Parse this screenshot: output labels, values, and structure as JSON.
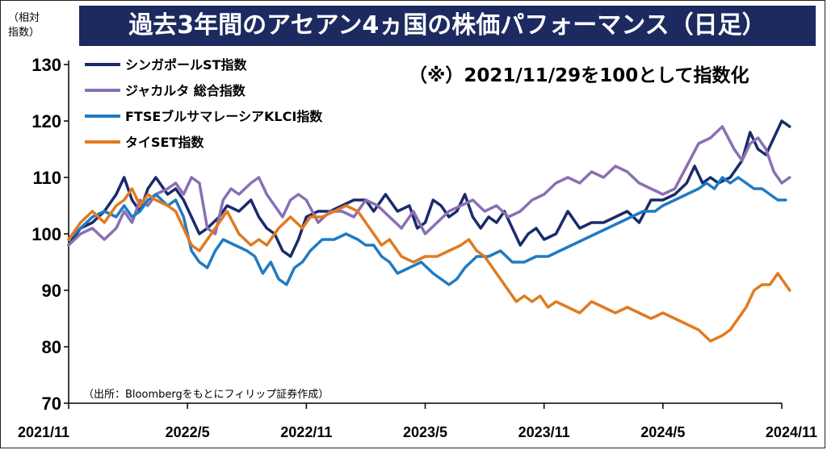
{
  "chart_data": {
    "type": "line",
    "title": "過去3年間のアセアン4ヵ国の株価パフォーマンス（日足）",
    "note": "（※）2021/11/29を100として指数化",
    "ylabel": "（相対指数）",
    "source": "（出所：Bloombergをもとにフィリップ証券作成）",
    "ylim": [
      70,
      130
    ],
    "yticks": [
      70,
      80,
      90,
      100,
      110,
      120,
      130
    ],
    "xlim": [
      0,
      36
    ],
    "xticks": [
      {
        "x": 0,
        "label": "2021/11"
      },
      {
        "x": 6,
        "label": "2022/5"
      },
      {
        "x": 12,
        "label": "2022/11"
      },
      {
        "x": 18,
        "label": "2023/5"
      },
      {
        "x": 24,
        "label": "2023/11"
      },
      {
        "x": 30,
        "label": "2024/5"
      },
      {
        "x": 36,
        "label": "2024/11"
      }
    ],
    "legend_position": "top-left",
    "series": [
      {
        "name": "シンガポールST指数",
        "color": "#1a2b6b",
        "points": [
          [
            0,
            98
          ],
          [
            0.6,
            101
          ],
          [
            1.2,
            102
          ],
          [
            1.8,
            104
          ],
          [
            2.4,
            107
          ],
          [
            2.8,
            110
          ],
          [
            3.2,
            106
          ],
          [
            3.6,
            104
          ],
          [
            4.0,
            108
          ],
          [
            4.4,
            110
          ],
          [
            5.0,
            107
          ],
          [
            5.4,
            108
          ],
          [
            5.8,
            106
          ],
          [
            6.2,
            103
          ],
          [
            6.6,
            100
          ],
          [
            7.0,
            101
          ],
          [
            7.6,
            103
          ],
          [
            8.0,
            105
          ],
          [
            8.6,
            104
          ],
          [
            9.2,
            106
          ],
          [
            9.6,
            103
          ],
          [
            10.0,
            101
          ],
          [
            10.4,
            100
          ],
          [
            10.8,
            97
          ],
          [
            11.2,
            96
          ],
          [
            11.6,
            99
          ],
          [
            12.0,
            103
          ],
          [
            12.6,
            104
          ],
          [
            13.2,
            104
          ],
          [
            13.8,
            105
          ],
          [
            14.4,
            106
          ],
          [
            15.0,
            106
          ],
          [
            15.4,
            104
          ],
          [
            16.0,
            107
          ],
          [
            16.6,
            104
          ],
          [
            17.2,
            105
          ],
          [
            17.6,
            101
          ],
          [
            18.0,
            102
          ],
          [
            18.4,
            106
          ],
          [
            18.8,
            105
          ],
          [
            19.2,
            103
          ],
          [
            19.6,
            104
          ],
          [
            20.0,
            107
          ],
          [
            20.4,
            103
          ],
          [
            20.8,
            101
          ],
          [
            21.2,
            103
          ],
          [
            21.6,
            102
          ],
          [
            22.0,
            104
          ],
          [
            22.4,
            101
          ],
          [
            22.8,
            98
          ],
          [
            23.2,
            100
          ],
          [
            23.6,
            101
          ],
          [
            24.0,
            99
          ],
          [
            24.6,
            100
          ],
          [
            25.2,
            104
          ],
          [
            25.8,
            101
          ],
          [
            26.4,
            102
          ],
          [
            27.0,
            102
          ],
          [
            27.6,
            103
          ],
          [
            28.2,
            104
          ],
          [
            28.8,
            102
          ],
          [
            29.4,
            106
          ],
          [
            30.0,
            106
          ],
          [
            30.6,
            107
          ],
          [
            31.2,
            109
          ],
          [
            31.6,
            112
          ],
          [
            32.0,
            109
          ],
          [
            32.4,
            110
          ],
          [
            32.8,
            109
          ],
          [
            33.4,
            110
          ],
          [
            34.0,
            113
          ],
          [
            34.4,
            118
          ],
          [
            34.8,
            115
          ],
          [
            35.2,
            114
          ],
          [
            35.6,
            117
          ],
          [
            36.0,
            120
          ],
          [
            36.4,
            119
          ]
        ]
      },
      {
        "name": "ジャカルタ 総合指数",
        "color": "#8a6fb5",
        "points": [
          [
            0,
            98
          ],
          [
            0.6,
            100
          ],
          [
            1.2,
            101
          ],
          [
            1.8,
            99
          ],
          [
            2.4,
            101
          ],
          [
            2.8,
            104
          ],
          [
            3.2,
            102
          ],
          [
            3.6,
            106
          ],
          [
            4.0,
            105
          ],
          [
            4.4,
            107
          ],
          [
            5.0,
            108
          ],
          [
            5.4,
            109
          ],
          [
            5.8,
            107
          ],
          [
            6.2,
            110
          ],
          [
            6.6,
            109
          ],
          [
            7.0,
            101
          ],
          [
            7.4,
            100
          ],
          [
            7.8,
            106
          ],
          [
            8.2,
            108
          ],
          [
            8.6,
            107
          ],
          [
            9.2,
            109
          ],
          [
            9.6,
            110
          ],
          [
            10.0,
            107
          ],
          [
            10.4,
            105
          ],
          [
            10.8,
            103
          ],
          [
            11.2,
            106
          ],
          [
            11.6,
            107
          ],
          [
            12.0,
            106
          ],
          [
            12.6,
            102
          ],
          [
            13.2,
            104
          ],
          [
            13.8,
            104
          ],
          [
            14.4,
            103
          ],
          [
            15.0,
            106
          ],
          [
            15.6,
            105
          ],
          [
            16.2,
            103
          ],
          [
            16.8,
            101
          ],
          [
            17.4,
            104
          ],
          [
            18.0,
            100
          ],
          [
            18.6,
            102
          ],
          [
            19.2,
            104
          ],
          [
            19.8,
            105
          ],
          [
            20.4,
            106
          ],
          [
            21.0,
            104
          ],
          [
            21.6,
            105
          ],
          [
            22.2,
            103
          ],
          [
            22.8,
            104
          ],
          [
            23.4,
            106
          ],
          [
            24.0,
            107
          ],
          [
            24.6,
            109
          ],
          [
            25.2,
            110
          ],
          [
            25.8,
            109
          ],
          [
            26.4,
            111
          ],
          [
            27.0,
            110
          ],
          [
            27.6,
            112
          ],
          [
            28.2,
            111
          ],
          [
            28.8,
            109
          ],
          [
            29.4,
            108
          ],
          [
            30.0,
            107
          ],
          [
            30.6,
            108
          ],
          [
            31.2,
            112
          ],
          [
            31.8,
            116
          ],
          [
            32.4,
            117
          ],
          [
            33.0,
            119
          ],
          [
            33.6,
            115
          ],
          [
            34.0,
            113
          ],
          [
            34.4,
            116
          ],
          [
            34.8,
            117
          ],
          [
            35.2,
            115
          ],
          [
            35.6,
            111
          ],
          [
            36.0,
            109
          ],
          [
            36.4,
            110
          ]
        ]
      },
      {
        "name": "FTSEブルサマレーシアKLCI指数",
        "color": "#1f7bc4",
        "points": [
          [
            0,
            99
          ],
          [
            0.6,
            101
          ],
          [
            1.2,
            103
          ],
          [
            1.8,
            104
          ],
          [
            2.4,
            103
          ],
          [
            2.8,
            105
          ],
          [
            3.2,
            103
          ],
          [
            3.6,
            104
          ],
          [
            4.0,
            106
          ],
          [
            4.4,
            107
          ],
          [
            5.0,
            105
          ],
          [
            5.4,
            106
          ],
          [
            5.8,
            103
          ],
          [
            6.2,
            97
          ],
          [
            6.6,
            95
          ],
          [
            7.0,
            94
          ],
          [
            7.4,
            97
          ],
          [
            7.8,
            99
          ],
          [
            8.4,
            98
          ],
          [
            9.0,
            97
          ],
          [
            9.4,
            96
          ],
          [
            9.8,
            93
          ],
          [
            10.2,
            95
          ],
          [
            10.6,
            92
          ],
          [
            11.0,
            91
          ],
          [
            11.4,
            94
          ],
          [
            11.8,
            95
          ],
          [
            12.2,
            97
          ],
          [
            12.8,
            99
          ],
          [
            13.4,
            99
          ],
          [
            14.0,
            100
          ],
          [
            14.6,
            99
          ],
          [
            15.0,
            98
          ],
          [
            15.4,
            98
          ],
          [
            15.8,
            96
          ],
          [
            16.2,
            95
          ],
          [
            16.6,
            93
          ],
          [
            17.2,
            94
          ],
          [
            17.8,
            95
          ],
          [
            18.4,
            93
          ],
          [
            18.8,
            92
          ],
          [
            19.2,
            91
          ],
          [
            19.6,
            92
          ],
          [
            20.0,
            94
          ],
          [
            20.6,
            96
          ],
          [
            21.2,
            96
          ],
          [
            21.8,
            97
          ],
          [
            22.4,
            95
          ],
          [
            23.0,
            95
          ],
          [
            23.6,
            96
          ],
          [
            24.2,
            96
          ],
          [
            24.8,
            97
          ],
          [
            25.4,
            98
          ],
          [
            26.0,
            99
          ],
          [
            26.6,
            100
          ],
          [
            27.2,
            101
          ],
          [
            27.8,
            102
          ],
          [
            28.4,
            103
          ],
          [
            29.0,
            104
          ],
          [
            29.6,
            104
          ],
          [
            30.0,
            105
          ],
          [
            30.6,
            106
          ],
          [
            31.2,
            107
          ],
          [
            31.8,
            108
          ],
          [
            32.2,
            109
          ],
          [
            32.6,
            108
          ],
          [
            33.0,
            110
          ],
          [
            33.4,
            109
          ],
          [
            33.8,
            110
          ],
          [
            34.2,
            109
          ],
          [
            34.6,
            108
          ],
          [
            35.0,
            108
          ],
          [
            35.4,
            107
          ],
          [
            35.8,
            106
          ],
          [
            36.2,
            106
          ]
        ]
      },
      {
        "name": "タイSET指数",
        "color": "#e07a22",
        "points": [
          [
            0,
            99
          ],
          [
            0.6,
            102
          ],
          [
            1.2,
            104
          ],
          [
            1.8,
            102
          ],
          [
            2.4,
            105
          ],
          [
            2.8,
            106
          ],
          [
            3.2,
            108
          ],
          [
            3.6,
            105
          ],
          [
            4.0,
            107
          ],
          [
            4.4,
            106
          ],
          [
            5.0,
            105
          ],
          [
            5.4,
            104
          ],
          [
            5.8,
            101
          ],
          [
            6.2,
            98
          ],
          [
            6.6,
            97
          ],
          [
            7.0,
            99
          ],
          [
            7.6,
            102
          ],
          [
            8.0,
            104
          ],
          [
            8.6,
            100
          ],
          [
            9.2,
            98
          ],
          [
            9.6,
            99
          ],
          [
            10.0,
            98
          ],
          [
            10.6,
            101
          ],
          [
            11.2,
            103
          ],
          [
            11.8,
            101
          ],
          [
            12.2,
            103
          ],
          [
            12.8,
            103
          ],
          [
            13.4,
            104
          ],
          [
            14.0,
            105
          ],
          [
            14.6,
            104
          ],
          [
            15.0,
            102
          ],
          [
            15.4,
            100
          ],
          [
            15.8,
            98
          ],
          [
            16.2,
            99
          ],
          [
            16.8,
            96
          ],
          [
            17.4,
            95
          ],
          [
            18.0,
            96
          ],
          [
            18.6,
            96
          ],
          [
            19.2,
            97
          ],
          [
            19.8,
            98
          ],
          [
            20.2,
            99
          ],
          [
            20.6,
            97
          ],
          [
            21.0,
            96
          ],
          [
            21.4,
            94
          ],
          [
            21.8,
            92
          ],
          [
            22.2,
            90
          ],
          [
            22.6,
            88
          ],
          [
            23.0,
            89
          ],
          [
            23.4,
            88
          ],
          [
            23.8,
            89
          ],
          [
            24.2,
            87
          ],
          [
            24.6,
            88
          ],
          [
            25.2,
            87
          ],
          [
            25.8,
            86
          ],
          [
            26.4,
            88
          ],
          [
            27.0,
            87
          ],
          [
            27.6,
            86
          ],
          [
            28.2,
            87
          ],
          [
            28.8,
            86
          ],
          [
            29.4,
            85
          ],
          [
            30.0,
            86
          ],
          [
            30.6,
            85
          ],
          [
            31.2,
            84
          ],
          [
            31.8,
            83
          ],
          [
            32.4,
            81
          ],
          [
            33.0,
            82
          ],
          [
            33.4,
            83
          ],
          [
            33.8,
            85
          ],
          [
            34.2,
            87
          ],
          [
            34.6,
            90
          ],
          [
            35.0,
            91
          ],
          [
            35.4,
            91
          ],
          [
            35.8,
            93
          ],
          [
            36.2,
            91
          ],
          [
            36.4,
            90
          ]
        ]
      }
    ]
  }
}
